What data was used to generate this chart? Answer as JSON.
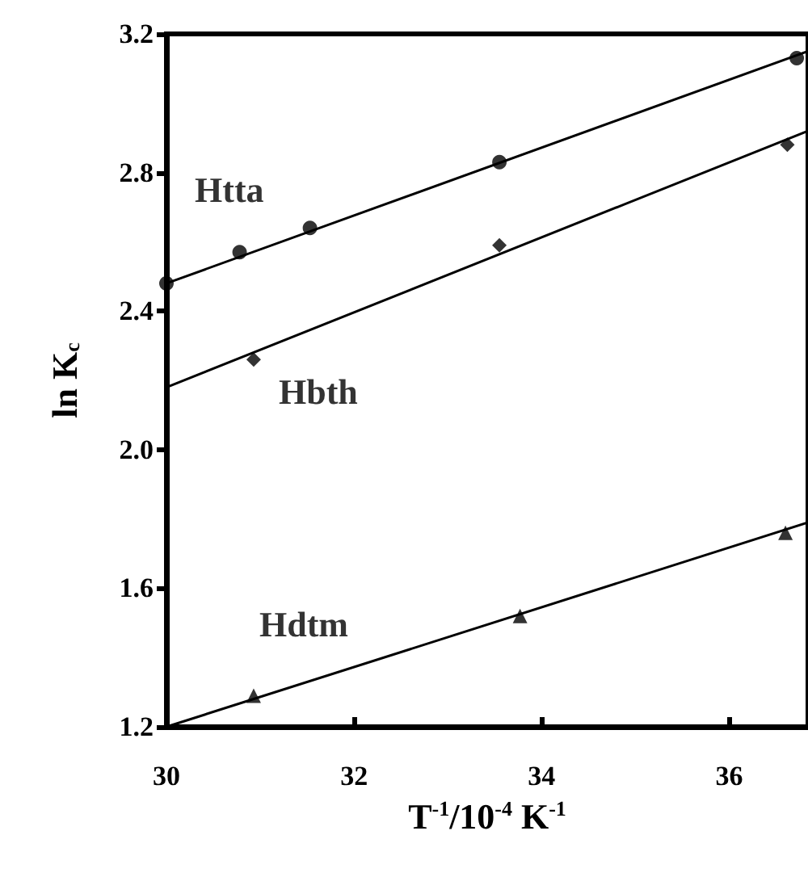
{
  "chart_data": {
    "type": "scatter",
    "xlabel": "T$^{-1}$/10$^{-4}$ K$^{-1}$",
    "ylabel": "ln K$_{c}$",
    "xlim": [
      30,
      36.84
    ],
    "xticks": [
      30,
      32,
      34,
      36
    ],
    "ylim": [
      1.2,
      3.2
    ],
    "yticks": [
      {
        "value": 1.2,
        "label": "1.2"
      },
      {
        "value": 1.6,
        "label": "1.6"
      },
      {
        "value": 2.0,
        "label": "2.0"
      },
      {
        "value": 2.4,
        "label": "2.4"
      },
      {
        "value": 2.8,
        "label": "2.8"
      },
      {
        "value": 3.2,
        "label": "3.2"
      }
    ],
    "grid": false,
    "legend": false,
    "series": [
      {
        "name": "Htta",
        "color": "#000000",
        "marker": "circle",
        "x": [
          30.0,
          30.78,
          31.53,
          33.55,
          36.72
        ],
        "values": [
          2.48,
          2.57,
          2.64,
          2.83,
          3.13
        ]
      },
      {
        "name": "Hbth",
        "color": "#000000",
        "marker": "diamond",
        "x": [
          30.93,
          33.55,
          36.62
        ],
        "values": [
          2.26,
          2.59,
          2.88
        ]
      },
      {
        "name": "Hdtm",
        "color": "#000000",
        "marker": "triangle",
        "x": [
          30.93,
          33.77,
          36.6
        ],
        "values": [
          1.29,
          1.52,
          1.76
        ]
      },
      {
        "type": "line",
        "color": "#000000",
        "marker": "none",
        "x": [
          30,
          36.84
        ],
        "values": [
          2.48,
          3.15
        ]
      },
      {
        "type": "line",
        "color": "#000000",
        "marker": "none",
        "x": [
          30,
          36.84
        ],
        "values": [
          2.18,
          2.92
        ]
      },
      {
        "type": "line",
        "color": "#000000",
        "marker": "none",
        "x": [
          30,
          36.84
        ],
        "values": [
          1.2,
          1.79
        ]
      }
    ]
  }
}
